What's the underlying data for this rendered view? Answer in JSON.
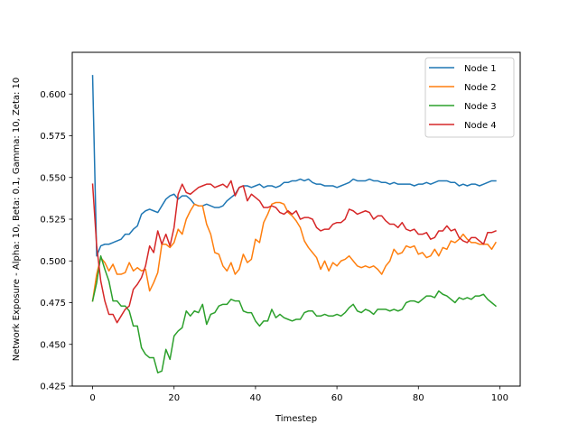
{
  "chart_data": {
    "type": "line",
    "title": "",
    "xlabel": "Timestep",
    "ylabel": "Network Exposure - Alpha: 10, Beta: 0.1, Gamma: 10, Zeta: 10",
    "xlim": [
      -5,
      105
    ],
    "ylim": [
      0.425,
      0.625
    ],
    "xticks": [
      0,
      20,
      40,
      60,
      80,
      100
    ],
    "xtick_labels": [
      "0",
      "20",
      "40",
      "60",
      "80",
      "100"
    ],
    "yticks": [
      0.425,
      0.45,
      0.475,
      0.5,
      0.525,
      0.55,
      0.575,
      0.6
    ],
    "ytick_labels": [
      "0.425",
      "0.450",
      "0.475",
      "0.500",
      "0.525",
      "0.550",
      "0.575",
      "0.600"
    ],
    "grid": false,
    "legend_position": "top-right",
    "x": [
      0,
      1,
      2,
      3,
      4,
      5,
      6,
      7,
      8,
      9,
      10,
      11,
      12,
      13,
      14,
      15,
      16,
      17,
      18,
      19,
      20,
      21,
      22,
      23,
      24,
      25,
      26,
      27,
      28,
      29,
      30,
      31,
      32,
      33,
      34,
      35,
      36,
      37,
      38,
      39,
      40,
      41,
      42,
      43,
      44,
      45,
      46,
      47,
      48,
      49,
      50,
      51,
      52,
      53,
      54,
      55,
      56,
      57,
      58,
      59,
      60,
      61,
      62,
      63,
      64,
      65,
      66,
      67,
      68,
      69,
      70,
      71,
      72,
      73,
      74,
      75,
      76,
      77,
      78,
      79,
      80,
      81,
      82,
      83,
      84,
      85,
      86,
      87,
      88,
      89,
      90,
      91,
      92,
      93,
      94,
      95,
      96,
      97,
      98,
      99
    ],
    "series": [
      {
        "name": "Node 1",
        "color": "#1f77b4",
        "values": [
          0.611,
          0.503,
          0.509,
          0.51,
          0.51,
          0.511,
          0.512,
          0.513,
          0.516,
          0.516,
          0.519,
          0.521,
          0.528,
          0.53,
          0.531,
          0.53,
          0.529,
          0.533,
          0.537,
          0.539,
          0.54,
          0.537,
          0.539,
          0.539,
          0.537,
          0.534,
          0.533,
          0.533,
          0.534,
          0.533,
          0.532,
          0.532,
          0.533,
          0.536,
          0.538,
          0.54,
          0.544,
          0.545,
          0.545,
          0.544,
          0.545,
          0.546,
          0.544,
          0.545,
          0.545,
          0.544,
          0.545,
          0.547,
          0.547,
          0.548,
          0.548,
          0.549,
          0.548,
          0.549,
          0.547,
          0.546,
          0.546,
          0.545,
          0.545,
          0.545,
          0.544,
          0.545,
          0.546,
          0.547,
          0.549,
          0.548,
          0.548,
          0.548,
          0.549,
          0.548,
          0.548,
          0.547,
          0.547,
          0.546,
          0.547,
          0.546,
          0.546,
          0.546,
          0.546,
          0.545,
          0.546,
          0.546,
          0.547,
          0.546,
          0.547,
          0.548,
          0.548,
          0.548,
          0.547,
          0.547,
          0.545,
          0.546,
          0.545,
          0.546,
          0.546,
          0.545,
          0.546,
          0.547,
          0.548,
          0.548
        ]
      },
      {
        "name": "Node 2",
        "color": "#ff7f0e",
        "values": [
          0.476,
          0.492,
          0.502,
          0.499,
          0.494,
          0.498,
          0.492,
          0.492,
          0.493,
          0.499,
          0.494,
          0.496,
          0.494,
          0.495,
          0.482,
          0.487,
          0.493,
          0.51,
          0.51,
          0.508,
          0.511,
          0.519,
          0.516,
          0.525,
          0.53,
          0.534,
          0.533,
          0.533,
          0.522,
          0.516,
          0.505,
          0.504,
          0.497,
          0.494,
          0.499,
          0.492,
          0.495,
          0.504,
          0.499,
          0.501,
          0.513,
          0.511,
          0.523,
          0.528,
          0.534,
          0.535,
          0.535,
          0.534,
          0.529,
          0.527,
          0.524,
          0.52,
          0.512,
          0.508,
          0.505,
          0.502,
          0.495,
          0.5,
          0.494,
          0.499,
          0.497,
          0.5,
          0.501,
          0.503,
          0.5,
          0.497,
          0.496,
          0.497,
          0.496,
          0.497,
          0.495,
          0.492,
          0.497,
          0.5,
          0.507,
          0.504,
          0.505,
          0.509,
          0.508,
          0.509,
          0.504,
          0.505,
          0.502,
          0.503,
          0.507,
          0.503,
          0.508,
          0.507,
          0.512,
          0.511,
          0.513,
          0.516,
          0.513,
          0.511,
          0.511,
          0.51,
          0.51,
          0.51,
          0.507,
          0.511
        ]
      },
      {
        "name": "Node 3",
        "color": "#2ca02c",
        "values": [
          0.476,
          0.487,
          0.503,
          0.495,
          0.488,
          0.476,
          0.476,
          0.473,
          0.473,
          0.47,
          0.461,
          0.461,
          0.448,
          0.444,
          0.442,
          0.442,
          0.433,
          0.434,
          0.447,
          0.441,
          0.455,
          0.458,
          0.46,
          0.47,
          0.467,
          0.47,
          0.469,
          0.474,
          0.462,
          0.468,
          0.469,
          0.473,
          0.474,
          0.474,
          0.477,
          0.476,
          0.476,
          0.47,
          0.469,
          0.469,
          0.464,
          0.461,
          0.464,
          0.464,
          0.471,
          0.466,
          0.468,
          0.466,
          0.465,
          0.464,
          0.465,
          0.465,
          0.469,
          0.47,
          0.47,
          0.467,
          0.467,
          0.468,
          0.467,
          0.467,
          0.468,
          0.467,
          0.469,
          0.472,
          0.474,
          0.47,
          0.469,
          0.471,
          0.47,
          0.468,
          0.471,
          0.471,
          0.471,
          0.47,
          0.471,
          0.47,
          0.471,
          0.475,
          0.476,
          0.476,
          0.475,
          0.477,
          0.479,
          0.479,
          0.478,
          0.482,
          0.48,
          0.479,
          0.477,
          0.475,
          0.478,
          0.477,
          0.478,
          0.477,
          0.479,
          0.479,
          0.48,
          0.477,
          0.475,
          0.473
        ]
      },
      {
        "name": "Node 4",
        "color": "#d62728",
        "values": [
          0.546,
          0.509,
          0.488,
          0.476,
          0.468,
          0.468,
          0.463,
          0.467,
          0.471,
          0.473,
          0.483,
          0.486,
          0.49,
          0.497,
          0.509,
          0.505,
          0.518,
          0.51,
          0.516,
          0.509,
          0.52,
          0.54,
          0.546,
          0.541,
          0.54,
          0.542,
          0.544,
          0.545,
          0.546,
          0.546,
          0.544,
          0.545,
          0.546,
          0.544,
          0.548,
          0.539,
          0.544,
          0.545,
          0.536,
          0.54,
          0.538,
          0.536,
          0.532,
          0.532,
          0.533,
          0.532,
          0.529,
          0.528,
          0.53,
          0.528,
          0.53,
          0.525,
          0.526,
          0.526,
          0.525,
          0.52,
          0.518,
          0.519,
          0.519,
          0.522,
          0.523,
          0.523,
          0.525,
          0.531,
          0.53,
          0.528,
          0.529,
          0.53,
          0.529,
          0.525,
          0.527,
          0.527,
          0.524,
          0.522,
          0.522,
          0.52,
          0.523,
          0.519,
          0.518,
          0.519,
          0.516,
          0.516,
          0.517,
          0.513,
          0.514,
          0.518,
          0.518,
          0.521,
          0.518,
          0.519,
          0.514,
          0.512,
          0.511,
          0.514,
          0.514,
          0.512,
          0.51,
          0.517,
          0.517,
          0.518
        ]
      }
    ]
  }
}
